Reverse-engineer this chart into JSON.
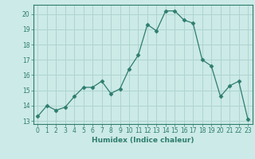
{
  "x": [
    0,
    1,
    2,
    3,
    4,
    5,
    6,
    7,
    8,
    9,
    10,
    11,
    12,
    13,
    14,
    15,
    16,
    17,
    18,
    19,
    20,
    21,
    22,
    23
  ],
  "y": [
    13.3,
    14.0,
    13.7,
    13.9,
    14.6,
    15.2,
    15.2,
    15.6,
    14.8,
    15.1,
    16.4,
    17.3,
    19.3,
    18.9,
    20.2,
    20.2,
    19.6,
    19.4,
    17.0,
    16.6,
    14.6,
    15.3,
    15.6,
    13.1
  ],
  "line_color": "#2e7d6e",
  "marker": "D",
  "marker_size": 2.5,
  "bg_color": "#cceae7",
  "grid_color": "#aed4d0",
  "xlabel": "Humidex (Indice chaleur)",
  "xlim": [
    -0.5,
    23.5
  ],
  "ylim": [
    12.8,
    20.6
  ],
  "yticks": [
    13,
    14,
    15,
    16,
    17,
    18,
    19,
    20
  ],
  "xticks": [
    0,
    1,
    2,
    3,
    4,
    5,
    6,
    7,
    8,
    9,
    10,
    11,
    12,
    13,
    14,
    15,
    16,
    17,
    18,
    19,
    20,
    21,
    22,
    23
  ],
  "tick_label_fontsize": 5.5,
  "xlabel_fontsize": 6.5
}
